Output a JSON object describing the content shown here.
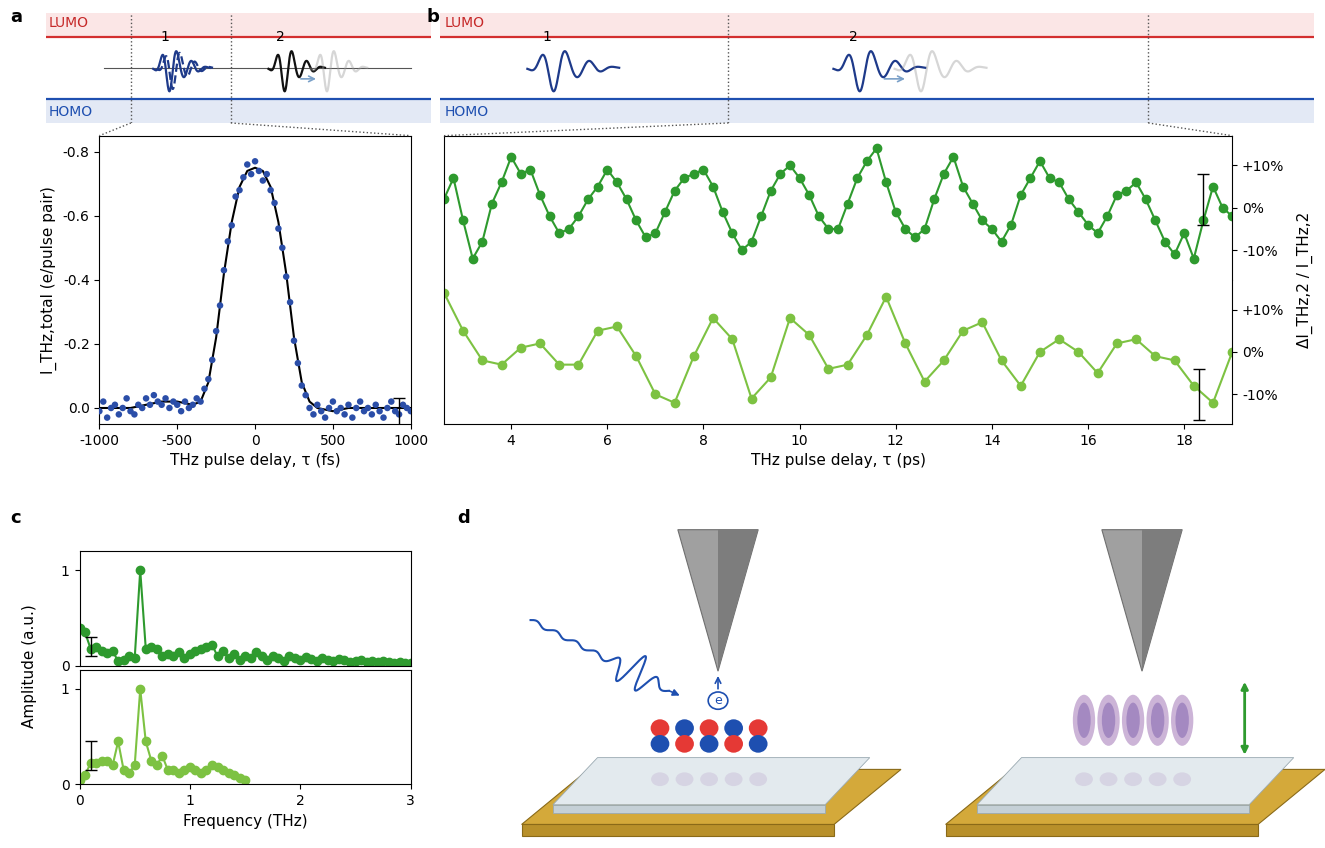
{
  "panel_labels": [
    "a",
    "b",
    "c",
    "d"
  ],
  "schematic": {
    "upper_level": "LUMO",
    "lower_level": "HOMO",
    "pulse_labels": [
      "1",
      "2"
    ]
  },
  "illustration": {
    "electron_label": "e"
  },
  "chart_data": [
    {
      "type": "scatter",
      "xlabel": "THz pulse delay, τ (fs)",
      "ylabel": "I_THz,total (e/pulse pair)",
      "xlim": [
        -1000,
        1000
      ],
      "xticks": [
        -1000,
        -500,
        0,
        500,
        1000
      ],
      "ylim": [
        0.05,
        -0.85
      ],
      "yticks": [
        {
          "value": 0.0,
          "label": "0.0"
        },
        {
          "value": -0.2,
          "label": "-0.2"
        },
        {
          "value": -0.4,
          "label": "-0.4"
        },
        {
          "value": -0.6,
          "label": "-0.6"
        },
        {
          "value": -0.8,
          "label": "-0.8"
        }
      ],
      "grid": false,
      "series": [
        {
          "type": "scatter",
          "color": "#2b4ea8",
          "marker": "o",
          "x": [
            -1000,
            -975,
            -950,
            -925,
            -900,
            -875,
            -850,
            -825,
            -800,
            -775,
            -750,
            -725,
            -700,
            -675,
            -650,
            -625,
            -600,
            -575,
            -550,
            -525,
            -500,
            -475,
            -450,
            -425,
            -400,
            -375,
            -350,
            -325,
            -300,
            -275,
            -250,
            -225,
            -200,
            -175,
            -150,
            -125,
            -100,
            -75,
            -50,
            -25,
            0,
            25,
            50,
            75,
            100,
            125,
            150,
            175,
            200,
            225,
            250,
            275,
            300,
            325,
            350,
            375,
            400,
            425,
            450,
            475,
            500,
            525,
            550,
            575,
            600,
            625,
            650,
            675,
            700,
            725,
            750,
            775,
            800,
            825,
            850,
            875,
            900,
            925,
            950,
            975,
            1000
          ],
          "values": [
            0.01,
            -0.02,
            0.03,
            0.0,
            -0.01,
            0.02,
            0.0,
            -0.03,
            0.01,
            0.02,
            -0.01,
            0.0,
            -0.03,
            -0.01,
            -0.04,
            -0.02,
            -0.01,
            -0.03,
            0.0,
            -0.02,
            -0.01,
            0.01,
            -0.02,
            0.0,
            -0.01,
            -0.03,
            -0.02,
            -0.06,
            -0.09,
            -0.15,
            -0.24,
            -0.32,
            -0.43,
            -0.52,
            -0.57,
            -0.66,
            -0.68,
            -0.72,
            -0.76,
            -0.73,
            -0.77,
            -0.74,
            -0.71,
            -0.73,
            -0.68,
            -0.64,
            -0.56,
            -0.5,
            -0.41,
            -0.33,
            -0.21,
            -0.14,
            -0.07,
            -0.04,
            0.0,
            0.02,
            -0.01,
            0.01,
            0.03,
            0.0,
            -0.02,
            0.01,
            0.0,
            0.02,
            -0.01,
            0.03,
            0.0,
            -0.02,
            0.01,
            0.0,
            0.02,
            -0.01,
            0.01,
            0.03,
            0.0,
            -0.02,
            0.01,
            0.02,
            -0.01,
            0.0,
            0.01
          ]
        },
        {
          "type": "line",
          "color": "#000000",
          "line_style": "solid",
          "x": [
            -1000,
            -900,
            -800,
            -700,
            -600,
            -500,
            -400,
            -350,
            -300,
            -250,
            -200,
            -150,
            -100,
            -50,
            0,
            50,
            100,
            150,
            200,
            250,
            300,
            350,
            400,
            500,
            600,
            700,
            800,
            900,
            1000
          ],
          "values": [
            0,
            0,
            0,
            -0.01,
            -0.02,
            -0.02,
            -0.01,
            -0.02,
            -0.08,
            -0.22,
            -0.42,
            -0.58,
            -0.69,
            -0.74,
            -0.75,
            -0.74,
            -0.69,
            -0.58,
            -0.42,
            -0.22,
            -0.08,
            -0.02,
            0.0,
            0.01,
            0,
            0,
            0,
            0,
            0
          ]
        }
      ],
      "error_bars": [
        {
          "x": 925,
          "y": 0.02,
          "error": 0.05
        }
      ]
    },
    {
      "type": "line",
      "ylabel": "ΔI_THz,2 / I_THz,2",
      "tick_labels": "y",
      "xlim": [
        2.6,
        19.0
      ],
      "xticks": [
        4,
        6,
        8,
        10,
        12,
        14,
        16,
        18
      ],
      "ylim": [
        -17,
        17
      ],
      "yticks": [
        {
          "value": 10,
          "label": "+10%"
        },
        {
          "value": 0,
          "label": "0%"
        },
        {
          "value": -10,
          "label": "-10%"
        }
      ],
      "grid": false,
      "series": [
        {
          "color": "#2e9a2e",
          "marker": "o",
          "line_style": "solid",
          "x": [
            2.6,
            2.8,
            3.0,
            3.2,
            3.4,
            3.6,
            3.8,
            4.0,
            4.2,
            4.4,
            4.6,
            4.8,
            5.0,
            5.2,
            5.4,
            5.6,
            5.8,
            6.0,
            6.2,
            6.4,
            6.6,
            6.8,
            7.0,
            7.2,
            7.4,
            7.6,
            7.8,
            8.0,
            8.2,
            8.4,
            8.6,
            8.8,
            9.0,
            9.2,
            9.4,
            9.6,
            9.8,
            10.0,
            10.2,
            10.4,
            10.6,
            10.8,
            11.0,
            11.2,
            11.4,
            11.6,
            11.8,
            12.0,
            12.2,
            12.4,
            12.6,
            12.8,
            13.0,
            13.2,
            13.4,
            13.6,
            13.8,
            14.0,
            14.2,
            14.4,
            14.6,
            14.8,
            15.0,
            15.2,
            15.4,
            15.6,
            15.8,
            16.0,
            16.2,
            16.4,
            16.6,
            16.8,
            17.0,
            17.2,
            17.4,
            17.6,
            17.8,
            18.0,
            18.2,
            18.4,
            18.6,
            18.8,
            19.0
          ],
          "values": [
            2,
            7,
            -3,
            -12,
            -8,
            1,
            6,
            12,
            8,
            9,
            3,
            -2,
            -6,
            -5,
            -2,
            2,
            5,
            9,
            6,
            2,
            -3,
            -7,
            -6,
            -1,
            4,
            7,
            8,
            9,
            5,
            -1,
            -6,
            -10,
            -8,
            -2,
            4,
            8,
            10,
            7,
            3,
            -2,
            -5,
            -5,
            1,
            7,
            11,
            14,
            6,
            -1,
            -5,
            -7,
            -5,
            2,
            8,
            12,
            5,
            1,
            -3,
            -5,
            -8,
            -4,
            3,
            7,
            11,
            7,
            6,
            2,
            -1,
            -4,
            -6,
            -2,
            3,
            4,
            6,
            2,
            -3,
            -8,
            -11,
            -6,
            -12,
            -3,
            5,
            0,
            -2
          ]
        }
      ],
      "error_bars": [
        {
          "x": 18.4,
          "y": 2,
          "error": 6
        }
      ]
    },
    {
      "type": "line",
      "xlabel": "THz pulse delay, τ (ps)",
      "xlim": [
        2.6,
        19.0
      ],
      "xticks": [
        4,
        6,
        8,
        10,
        12,
        14,
        16,
        18
      ],
      "ylim": [
        -17,
        17
      ],
      "yticks": [
        {
          "value": 10,
          "label": "+10%"
        },
        {
          "value": 0,
          "label": "0%"
        },
        {
          "value": -10,
          "label": "-10%"
        }
      ],
      "grid": false,
      "series": [
        {
          "color": "#7dc242",
          "marker": "o",
          "line_style": "solid",
          "x": [
            2.6,
            3.0,
            3.4,
            3.8,
            4.2,
            4.6,
            5.0,
            5.4,
            5.8,
            6.2,
            6.6,
            7.0,
            7.4,
            7.8,
            8.2,
            8.6,
            9.0,
            9.4,
            9.8,
            10.2,
            10.6,
            11.0,
            11.4,
            11.8,
            12.2,
            12.6,
            13.0,
            13.4,
            13.8,
            14.2,
            14.6,
            15.0,
            15.4,
            15.8,
            16.2,
            16.6,
            17.0,
            17.4,
            17.8,
            18.2,
            18.6,
            19.0
          ],
          "values": [
            14,
            5,
            -2,
            -3,
            1,
            2,
            -3,
            -3,
            5,
            6,
            -1,
            -10,
            -12,
            -1,
            8,
            3,
            -11,
            -6,
            8,
            4,
            -4,
            -3,
            4,
            13,
            2,
            -7,
            -2,
            5,
            7,
            -2,
            -8,
            0,
            3,
            0,
            -5,
            2,
            3,
            -1,
            -2,
            -8,
            -12,
            0
          ]
        }
      ],
      "error_bars": [
        {
          "x": 18.3,
          "y": -10,
          "error": 6
        }
      ]
    },
    {
      "type": "line",
      "ylabel": "Amplitude (a.u.)",
      "tick_labels": "y",
      "xlim": [
        0,
        3
      ],
      "xticks": [
        0,
        1,
        2,
        3
      ],
      "ylim": [
        0,
        1.2
      ],
      "yticks": [
        0,
        1
      ],
      "grid": false,
      "series": [
        {
          "color": "#2e9a2e",
          "marker": "o",
          "line_style": "solid",
          "x": [
            0,
            0.05,
            0.1,
            0.15,
            0.2,
            0.25,
            0.3,
            0.35,
            0.4,
            0.45,
            0.5,
            0.55,
            0.6,
            0.65,
            0.7,
            0.75,
            0.8,
            0.85,
            0.9,
            0.95,
            1.0,
            1.05,
            1.1,
            1.15,
            1.2,
            1.25,
            1.3,
            1.35,
            1.4,
            1.45,
            1.5,
            1.55,
            1.6,
            1.65,
            1.7,
            1.75,
            1.8,
            1.85,
            1.9,
            1.95,
            2.0,
            2.05,
            2.1,
            2.15,
            2.2,
            2.25,
            2.3,
            2.35,
            2.4,
            2.45,
            2.5,
            2.55,
            2.6,
            2.65,
            2.7,
            2.75,
            2.8,
            2.85,
            2.9,
            2.95,
            3.0
          ],
          "values": [
            0.4,
            0.35,
            0.18,
            0.2,
            0.15,
            0.13,
            0.15,
            0.05,
            0.06,
            0.1,
            0.08,
            1.0,
            0.18,
            0.2,
            0.17,
            0.1,
            0.12,
            0.1,
            0.14,
            0.08,
            0.12,
            0.15,
            0.18,
            0.2,
            0.22,
            0.1,
            0.15,
            0.08,
            0.12,
            0.06,
            0.1,
            0.08,
            0.14,
            0.1,
            0.06,
            0.1,
            0.08,
            0.05,
            0.1,
            0.08,
            0.06,
            0.09,
            0.07,
            0.05,
            0.08,
            0.06,
            0.05,
            0.07,
            0.06,
            0.04,
            0.05,
            0.06,
            0.04,
            0.05,
            0.04,
            0.05,
            0.04,
            0.03,
            0.04,
            0.03,
            0.03
          ]
        }
      ],
      "error_bars": [
        {
          "x": 0.1,
          "y": 0.2,
          "error": 0.1
        }
      ]
    },
    {
      "type": "line",
      "xlabel": "Frequency (THz)",
      "xlim": [
        0,
        3
      ],
      "xticks": [
        0,
        1,
        2,
        3
      ],
      "ylim": [
        0,
        1.2
      ],
      "yticks": [
        0,
        1
      ],
      "grid": false,
      "series": [
        {
          "color": "#7dc242",
          "marker": "o",
          "line_style": "solid",
          "x": [
            0,
            0.05,
            0.1,
            0.15,
            0.2,
            0.25,
            0.3,
            0.35,
            0.4,
            0.45,
            0.5,
            0.55,
            0.6,
            0.65,
            0.7,
            0.75,
            0.8,
            0.85,
            0.9,
            0.95,
            1.0,
            1.05,
            1.1,
            1.15,
            1.2,
            1.25,
            1.3,
            1.35,
            1.4,
            1.45,
            1.5
          ],
          "values": [
            0.05,
            0.1,
            0.22,
            0.22,
            0.25,
            0.25,
            0.2,
            0.45,
            0.15,
            0.12,
            0.2,
            1.0,
            0.45,
            0.25,
            0.2,
            0.3,
            0.15,
            0.15,
            0.12,
            0.15,
            0.18,
            0.15,
            0.12,
            0.15,
            0.2,
            0.18,
            0.15,
            0.12,
            0.1,
            0.07,
            0.05
          ]
        }
      ],
      "error_bars": [
        {
          "x": 0.1,
          "y": 0.3,
          "error": 0.15
        }
      ]
    }
  ]
}
